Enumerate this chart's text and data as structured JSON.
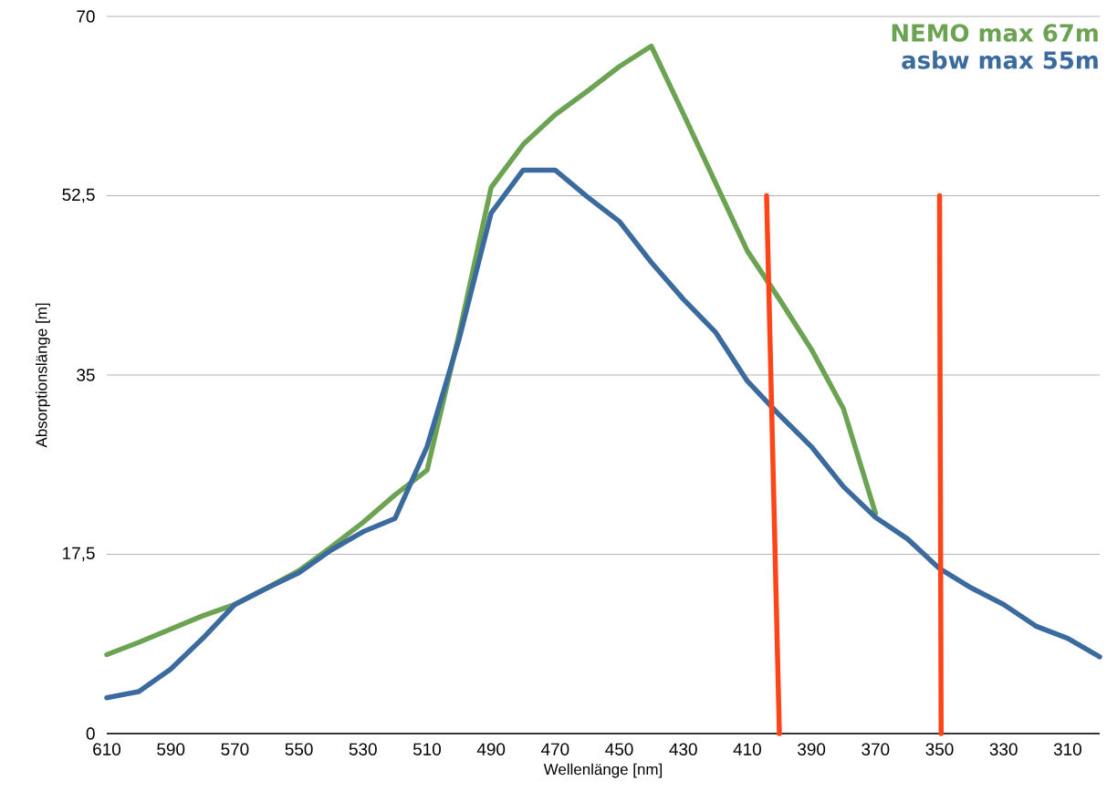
{
  "chart_data": {
    "type": "line",
    "xlabel": "Wellenlänge [nm]",
    "ylabel": "Absorptionslänge [m]",
    "x": [
      610,
      600,
      590,
      580,
      570,
      560,
      550,
      540,
      530,
      520,
      510,
      500,
      490,
      480,
      470,
      460,
      450,
      440,
      430,
      420,
      410,
      400,
      390,
      380,
      370,
      360,
      350,
      340,
      330,
      320,
      310,
      300
    ],
    "xlim": [
      610,
      300
    ],
    "xticks": [
      610,
      590,
      570,
      550,
      530,
      510,
      490,
      470,
      450,
      430,
      410,
      390,
      370,
      350,
      330,
      310
    ],
    "ylim": [
      0,
      70
    ],
    "yticks": [
      0,
      {
        "value": 17.5,
        "label": "17,5"
      },
      35,
      {
        "value": 52.5,
        "label": "52,5"
      },
      70
    ],
    "grid": "y",
    "legend": "top right",
    "line_style": "solid",
    "marker": "none",
    "series": [
      {
        "name": "NEMO max 67m",
        "color": "#6ba353",
        "values": [
          7.7,
          8.9,
          10.2,
          11.5,
          12.6,
          14.2,
          15.9,
          18.2,
          20.6,
          23.3,
          25.7,
          39,
          53.3,
          57.5,
          60.4,
          62.7,
          65.1,
          67.1,
          60.5,
          53.8,
          47.1,
          42.4,
          37.5,
          31.7,
          21.5,
          null,
          null,
          null,
          null,
          null,
          null,
          null
        ]
      },
      {
        "name": "asbw  max 55m",
        "color": "#3a6a9e",
        "values": [
          3.5,
          4.1,
          6.3,
          9.3,
          12.6,
          14.2,
          15.7,
          17.9,
          19.7,
          21.0,
          28.0,
          38.5,
          50.8,
          55.0,
          55.0,
          52.4,
          50.0,
          46.0,
          42.4,
          39.2,
          34.4,
          31.1,
          28.0,
          24.1,
          21.1,
          19.0,
          16.1,
          14.2,
          12.6,
          10.5,
          9.3,
          7.5
        ]
      },
      {
        "color": "#ff4418",
        "x": [
          404,
          400
        ],
        "values": [
          52.5,
          0
        ]
      },
      {
        "color": "#ff4418",
        "x": [
          350,
          349.5
        ],
        "values": [
          52.5,
          0
        ]
      }
    ]
  }
}
